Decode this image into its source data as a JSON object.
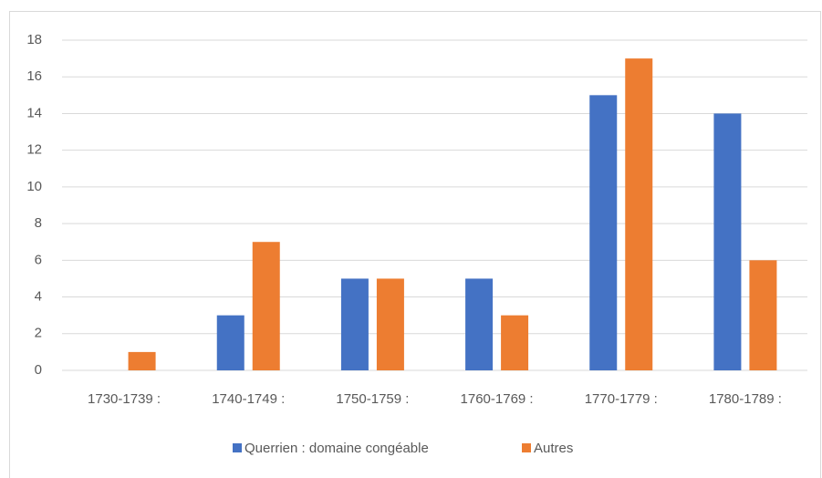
{
  "chart_data": {
    "type": "bar",
    "categories": [
      "1730-1739 :",
      "1740-1749 :",
      "1750-1759 :",
      "1760-1769 :",
      "1770-1779 :",
      "1780-1789 :"
    ],
    "series": [
      {
        "name": "Querrien : domaine congéable",
        "color": "#4472c4",
        "values": [
          0,
          3,
          5,
          5,
          15,
          14
        ]
      },
      {
        "name": "Autres",
        "color": "#ed7d31",
        "values": [
          1,
          7,
          5,
          3,
          17,
          6
        ]
      }
    ],
    "ylim": [
      0,
      18
    ],
    "yticks": [
      0,
      2,
      4,
      6,
      8,
      10,
      12,
      14,
      16,
      18
    ],
    "grid": true,
    "legend": "bottom"
  }
}
